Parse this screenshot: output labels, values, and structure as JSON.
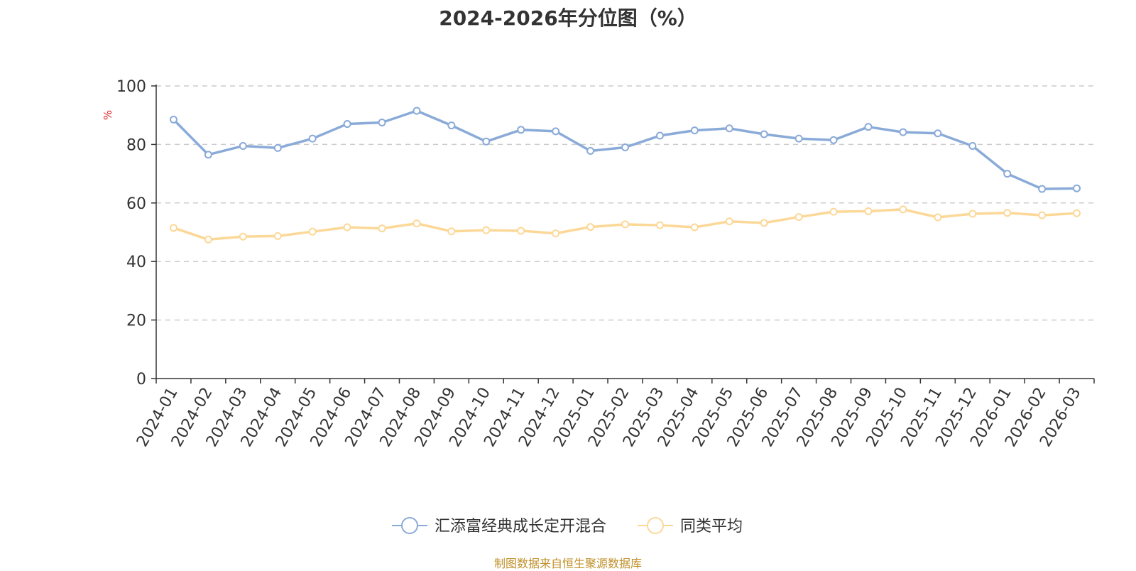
{
  "chart_data": {
    "type": "line",
    "title": "2024-2026年分位图（%）",
    "ylabel": "%",
    "xlabel": "",
    "ylim": [
      0,
      100
    ],
    "yticks": [
      0,
      20,
      40,
      60,
      80,
      100
    ],
    "grid": true,
    "legend_position": "bottom",
    "categories": [
      "2024-01",
      "2024-02",
      "2024-03",
      "2024-04",
      "2024-05",
      "2024-06",
      "2024-07",
      "2024-08",
      "2024-09",
      "2024-10",
      "2024-11",
      "2024-12",
      "2025-01",
      "2025-02",
      "2025-03",
      "2025-04",
      "2025-05",
      "2025-06",
      "2025-07",
      "2025-08",
      "2025-09",
      "2025-10",
      "2025-11",
      "2025-12",
      "2026-01",
      "2026-02",
      "2026-03"
    ],
    "series": [
      {
        "name": "汇添富经典成长定开混合",
        "color": "#8aaad8",
        "values": [
          88.5,
          76.5,
          79.5,
          78.8,
          82.0,
          87.0,
          87.5,
          91.5,
          86.5,
          81.0,
          85.0,
          84.5,
          77.8,
          79.0,
          83.0,
          84.8,
          85.5,
          83.5,
          82.0,
          81.5,
          86.0,
          84.2,
          83.8,
          79.5,
          70.0,
          64.8,
          65.0
        ]
      },
      {
        "name": "同类平均",
        "color": "#fcd898",
        "values": [
          51.5,
          47.5,
          48.5,
          48.7,
          50.2,
          51.7,
          51.3,
          53.0,
          50.3,
          50.7,
          50.5,
          49.6,
          51.8,
          52.7,
          52.4,
          51.7,
          53.7,
          53.2,
          55.2,
          57.0,
          57.2,
          57.8,
          55.1,
          56.3,
          56.6,
          55.8,
          56.5
        ]
      }
    ]
  },
  "source_note": "制图数据来自恒生聚源数据库"
}
